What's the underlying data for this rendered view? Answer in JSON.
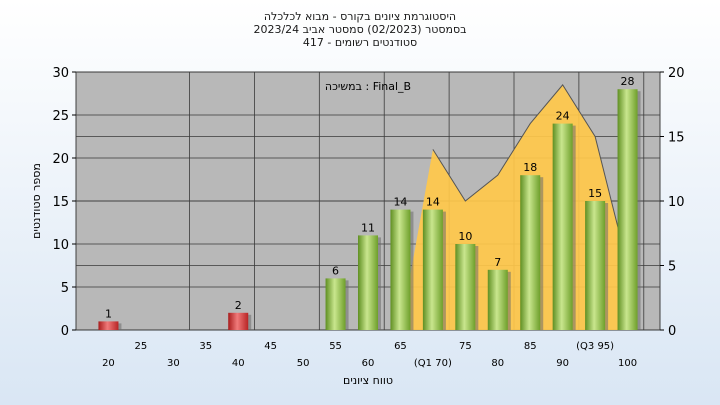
{
  "title_lines": [
    "היסטוגרמת ציונים בקורס - מבוא לכלכלה",
    "בסמסטר (02/2023) סמסטר אביב 2023/24",
    "סטודנטים רשומים - 417"
  ],
  "chart_data": {
    "type": "bar",
    "annotation": "Final_B : במשיכה",
    "xlabel": "טווח ציונים",
    "ylabel": "מספר סטודנטים",
    "ylim": [
      0,
      30
    ],
    "yticks": [
      0,
      5,
      10,
      15,
      20,
      25,
      30
    ],
    "y2lim": [
      0,
      20
    ],
    "y2ticks": [
      0,
      5,
      10,
      15,
      20
    ],
    "x_tick_labels_upper": [
      "25",
      "35",
      "45",
      "55",
      "65",
      "75",
      "85",
      "(Q3 95)"
    ],
    "x_tick_labels_lower": [
      "20",
      "30",
      "40",
      "50",
      "60",
      "(Q1 70)",
      "80",
      "90",
      "100"
    ],
    "categories": [
      "20",
      "25",
      "30",
      "35",
      "40",
      "45",
      "50",
      "55",
      "60",
      "65",
      "70",
      "75",
      "80",
      "85",
      "90",
      "95",
      "100"
    ],
    "values": [
      1,
      0,
      0,
      0,
      2,
      0,
      0,
      6,
      11,
      14,
      14,
      10,
      7,
      18,
      24,
      15,
      28
    ],
    "value_labels": [
      "1",
      "",
      "",
      "",
      "2",
      "",
      "",
      "6",
      "11",
      "14",
      "14",
      "10",
      "7",
      "18",
      "24",
      "15",
      "28"
    ],
    "failing_threshold": 55,
    "area_series": {
      "axis": "secondary",
      "x": [
        65,
        70,
        75,
        80,
        85,
        90,
        95,
        100
      ],
      "values": [
        0,
        14,
        10,
        12,
        16,
        19,
        15,
        5
      ]
    },
    "colors": {
      "pass_bar": "#8fc04a",
      "fail_bar": "#d93a3a",
      "area": "#ffc84a",
      "plot_bg": "#b8b8b8"
    }
  }
}
